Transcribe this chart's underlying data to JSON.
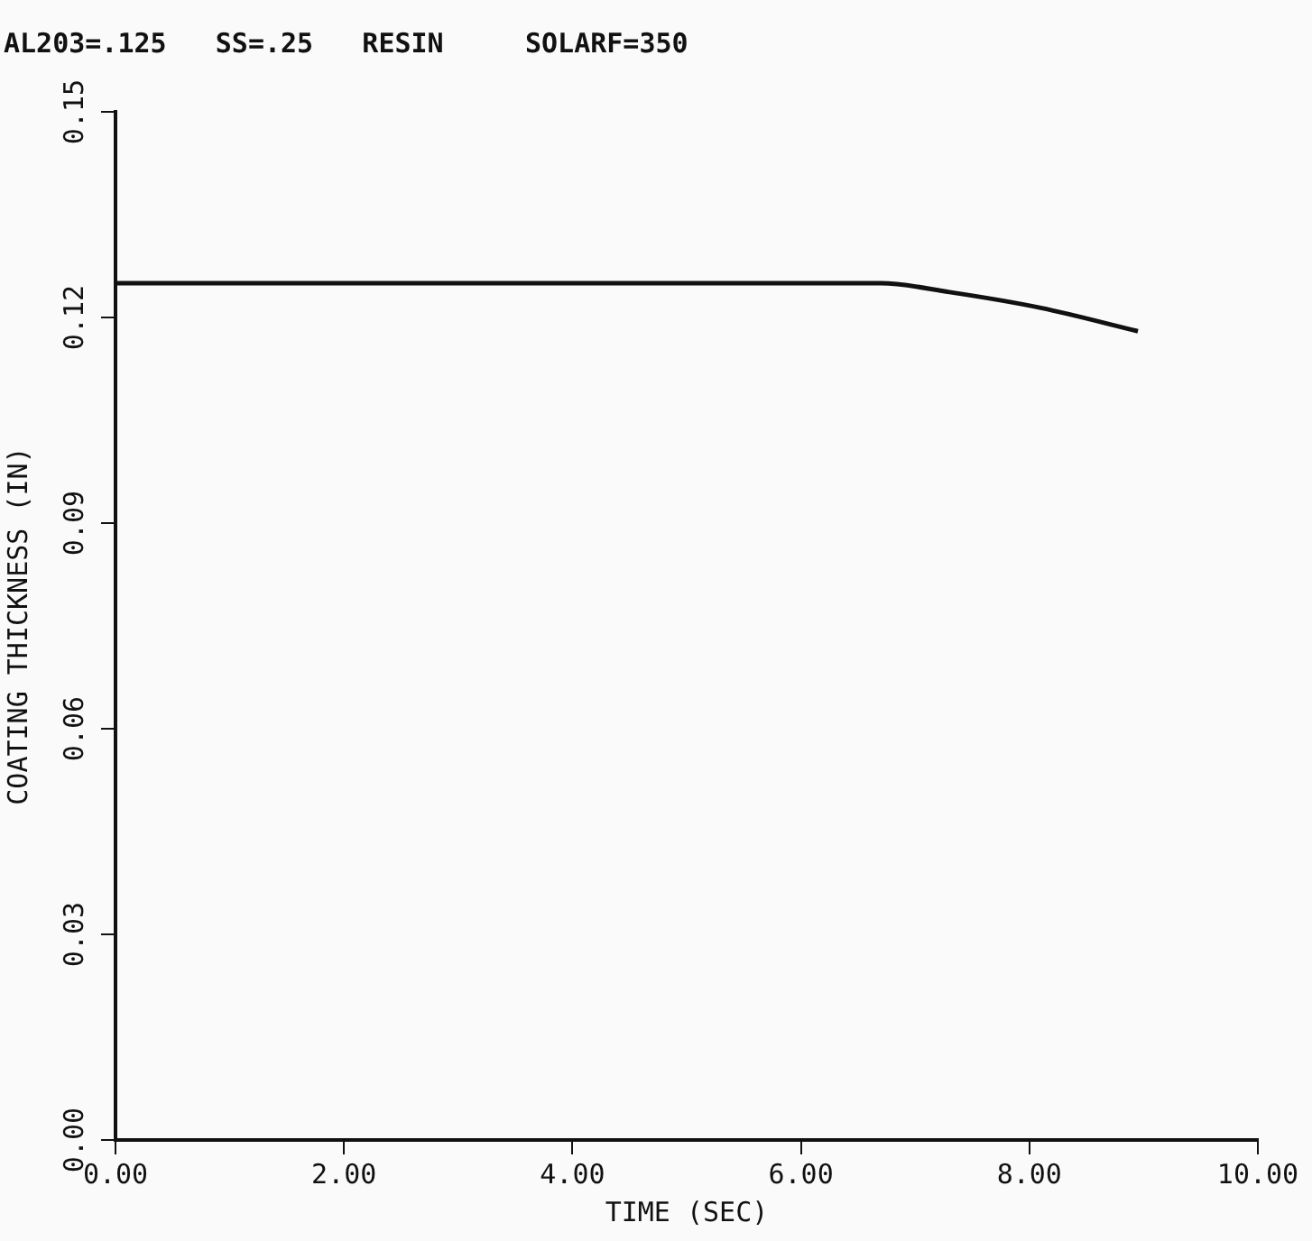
{
  "chart_data": {
    "type": "line",
    "title": "AL203=.125   SS=.25   RESIN     SOLARF=350",
    "xlabel": "TIME (SEC)",
    "ylabel": "COATING THICKNESS (IN)",
    "x": [
      0,
      6.7,
      7.3,
      8.1,
      8.95
    ],
    "series": [
      {
        "color": "#111111",
        "values": [
          0.125,
          0.125,
          0.1237,
          0.1214,
          0.118
        ]
      }
    ],
    "xlim": [
      0,
      10
    ],
    "xticks": [
      {
        "value": 0,
        "label": "0.00"
      },
      {
        "value": 2,
        "label": "2.00"
      },
      {
        "value": 4,
        "label": "4.00"
      },
      {
        "value": 6,
        "label": "6.00"
      },
      {
        "value": 8,
        "label": "8.00"
      },
      {
        "value": 10,
        "label": "10.00"
      }
    ],
    "ylim": [
      0,
      0.15
    ],
    "yticks": [
      {
        "value": 0,
        "label": "0.00"
      },
      {
        "value": 0.03,
        "label": "0.03"
      },
      {
        "value": 0.06,
        "label": "0.06"
      },
      {
        "value": 0.09,
        "label": "0.09"
      },
      {
        "value": 0.12,
        "label": "0.12"
      },
      {
        "value": 0.15,
        "label": "0.15"
      }
    ],
    "grid": false,
    "legend": false,
    "marker": "none",
    "line_style": "solid"
  }
}
